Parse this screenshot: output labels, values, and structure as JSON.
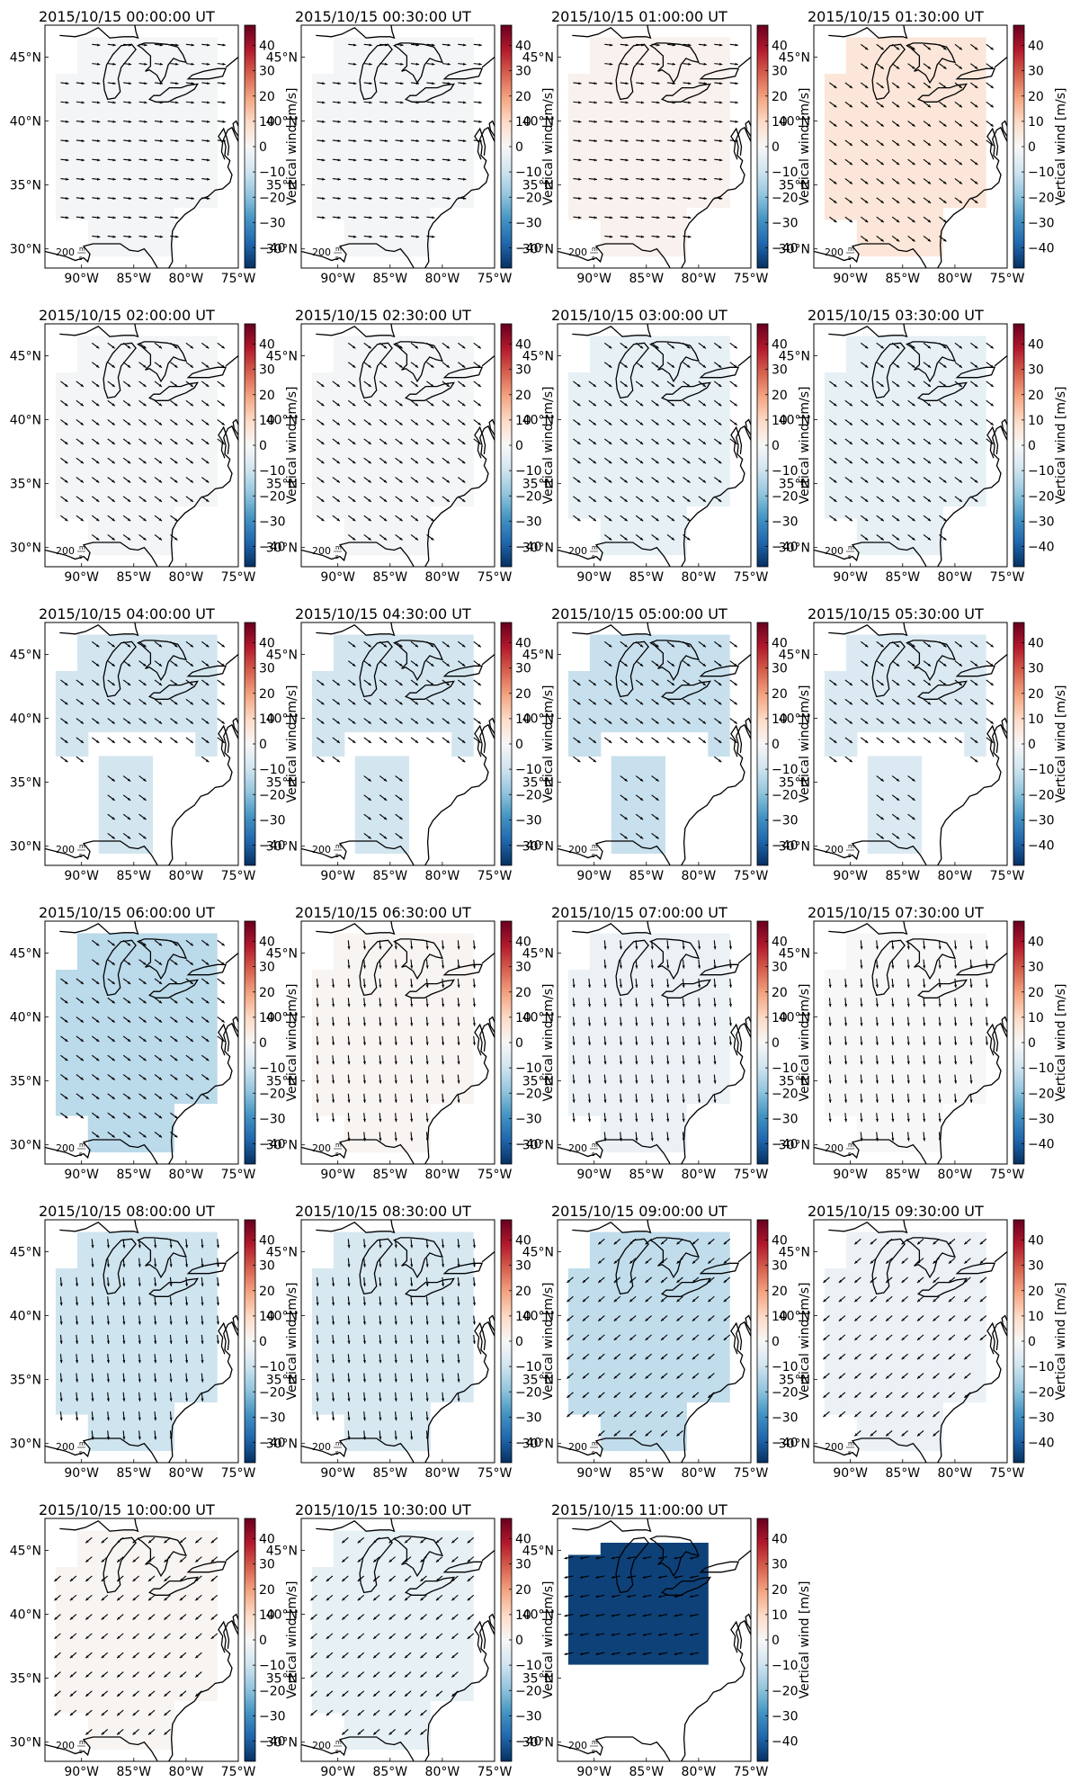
{
  "figure": {
    "colorbar_label": "Vertical wind [m/s]",
    "colorbar_ticks": [
      "40",
      "30",
      "20",
      "10",
      "0",
      "−10",
      "−20",
      "−30",
      "−40"
    ],
    "colorbar_values": [
      40,
      30,
      20,
      10,
      0,
      -10,
      -20,
      -30,
      -40
    ],
    "lon_ticks": [
      "90°W",
      "85°W",
      "80°W",
      "75°W"
    ],
    "lat_ticks": [
      "45°N",
      "40°N",
      "35°N",
      "30°N"
    ],
    "scale_label": "200",
    "scale_unit_num": "m",
    "scale_unit_den": "s",
    "colors": {
      "blue_end": "#053061",
      "red_end": "#67001f",
      "white": "#f7f7f7"
    }
  },
  "chart_data": [
    {
      "type": "heatmap",
      "title": "2015/10/15 00:00:00 UT",
      "mean_vertical_wind": -1,
      "pattern": "east"
    },
    {
      "type": "heatmap",
      "title": "2015/10/15 00:30:00 UT",
      "mean_vertical_wind": -1,
      "pattern": "east"
    },
    {
      "type": "heatmap",
      "title": "2015/10/15 01:00:00 UT",
      "mean_vertical_wind": 2,
      "pattern": "east"
    },
    {
      "type": "heatmap",
      "title": "2015/10/15 01:30:00 UT",
      "mean_vertical_wind": 6,
      "pattern": "southeast"
    },
    {
      "type": "heatmap",
      "title": "2015/10/15 02:00:00 UT",
      "mean_vertical_wind": -1,
      "pattern": "southeast"
    },
    {
      "type": "heatmap",
      "title": "2015/10/15 02:30:00 UT",
      "mean_vertical_wind": -1,
      "pattern": "southeast"
    },
    {
      "type": "heatmap",
      "title": "2015/10/15 03:00:00 UT",
      "mean_vertical_wind": -4,
      "pattern": "southeast"
    },
    {
      "type": "heatmap",
      "title": "2015/10/15 03:30:00 UT",
      "mean_vertical_wind": -4,
      "pattern": "southeast"
    },
    {
      "type": "heatmap",
      "title": "2015/10/15 04:00:00 UT",
      "mean_vertical_wind": -9,
      "pattern": "southeast"
    },
    {
      "type": "heatmap",
      "title": "2015/10/15 04:30:00 UT",
      "mean_vertical_wind": -9,
      "pattern": "southeast"
    },
    {
      "type": "heatmap",
      "title": "2015/10/15 05:00:00 UT",
      "mean_vertical_wind": -11,
      "pattern": "southeast"
    },
    {
      "type": "heatmap",
      "title": "2015/10/15 05:30:00 UT",
      "mean_vertical_wind": -7,
      "pattern": "southeast"
    },
    {
      "type": "heatmap",
      "title": "2015/10/15 06:00:00 UT",
      "mean_vertical_wind": -13,
      "pattern": "southeast"
    },
    {
      "type": "heatmap",
      "title": "2015/10/15 06:30:00 UT",
      "mean_vertical_wind": 1,
      "pattern": "south"
    },
    {
      "type": "heatmap",
      "title": "2015/10/15 07:00:00 UT",
      "mean_vertical_wind": -3,
      "pattern": "south"
    },
    {
      "type": "heatmap",
      "title": "2015/10/15 07:30:00 UT",
      "mean_vertical_wind": 0,
      "pattern": "south"
    },
    {
      "type": "heatmap",
      "title": "2015/10/15 08:00:00 UT",
      "mean_vertical_wind": -10,
      "pattern": "south"
    },
    {
      "type": "heatmap",
      "title": "2015/10/15 08:30:00 UT",
      "mean_vertical_wind": -8,
      "pattern": "south"
    },
    {
      "type": "heatmap",
      "title": "2015/10/15 09:00:00 UT",
      "mean_vertical_wind": -12,
      "pattern": "southwest"
    },
    {
      "type": "heatmap",
      "title": "2015/10/15 09:30:00 UT",
      "mean_vertical_wind": -3,
      "pattern": "southwest"
    },
    {
      "type": "heatmap",
      "title": "2015/10/15 10:00:00 UT",
      "mean_vertical_wind": 1,
      "pattern": "southwest"
    },
    {
      "type": "heatmap",
      "title": "2015/10/15 10:30:00 UT",
      "mean_vertical_wind": -4,
      "pattern": "southwest"
    },
    {
      "type": "heatmap",
      "title": "2015/10/15 11:00:00 UT",
      "mean_vertical_wind": -45,
      "pattern": "west"
    }
  ]
}
